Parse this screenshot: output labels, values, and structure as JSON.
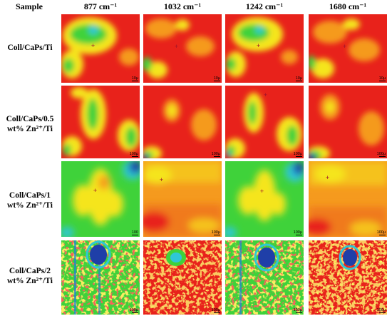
{
  "header": {
    "sample": "Sample",
    "columns": [
      {
        "label": "877 cm⁻¹"
      },
      {
        "label": "1032 cm⁻¹"
      },
      {
        "label": "1242 cm⁻¹"
      },
      {
        "label": "1680 cm⁻¹"
      }
    ]
  },
  "rows": [
    {
      "line1": "Coll/CaPs/Ti",
      "line2": ""
    },
    {
      "line1": "Coll/CaPs/0.5",
      "line2": "wt% Zn²⁺/Ti"
    },
    {
      "line1": "Coll/CaPs/1",
      "line2": "wt% Zn²⁺/Ti"
    },
    {
      "line1": "Coll/CaPs/2",
      "line2": "wt% Zn²⁺/Ti"
    }
  ],
  "scale_labels": [
    "10µ",
    "100µ",
    "100",
    "100µ"
  ],
  "colors": {
    "red": "#e8221b",
    "orange": "#f59a1e",
    "yellow": "#f5e51e",
    "green": "#3fd23a",
    "cyan": "#2ec7d6",
    "blue": "#1f3fa8",
    "cross": "#a0142a"
  }
}
